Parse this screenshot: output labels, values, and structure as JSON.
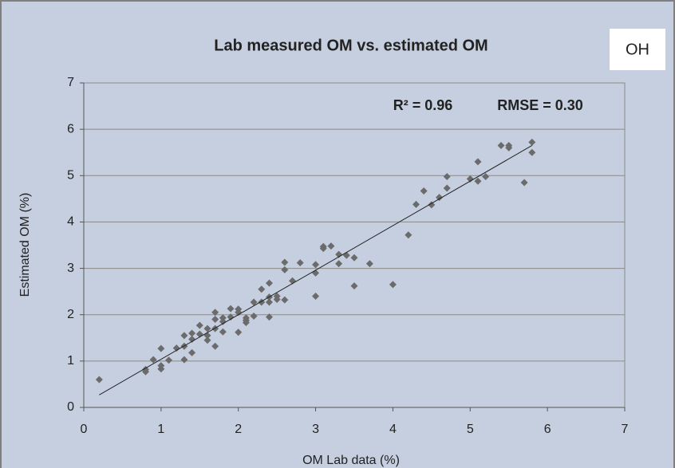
{
  "chart_data": {
    "type": "scatter",
    "title": "Lab measured OM vs. estimated OM",
    "label": "OH",
    "annotations": [
      "R² = 0.96",
      "RMSE = 0.30"
    ],
    "x_label": "OM Lab data (%)",
    "y_label": "Estimated OM (%)",
    "xlim": [
      0,
      7
    ],
    "xticks": [
      0,
      1,
      2,
      3,
      4,
      5,
      6,
      7
    ],
    "ylim": [
      0,
      7
    ],
    "yticks": [
      0,
      1,
      2,
      3,
      4,
      5,
      6,
      7
    ],
    "grid": true,
    "color": "#6b6b6b",
    "x": [
      0.2,
      0.8,
      0.8,
      0.9,
      1.0,
      1.0,
      1.0,
      1.1,
      1.2,
      1.3,
      1.3,
      1.3,
      1.4,
      1.4,
      1.4,
      1.5,
      1.5,
      1.6,
      1.6,
      1.6,
      1.7,
      1.7,
      1.7,
      1.7,
      1.8,
      1.8,
      1.8,
      1.9,
      1.9,
      2.0,
      2.0,
      2.0,
      2.1,
      2.1,
      2.1,
      2.2,
      2.2,
      2.3,
      2.3,
      2.4,
      2.4,
      2.4,
      2.4,
      2.5,
      2.5,
      2.6,
      2.6,
      2.6,
      2.7,
      2.8,
      3.0,
      3.0,
      3.0,
      3.1,
      3.1,
      3.2,
      3.3,
      3.3,
      3.4,
      3.5,
      3.5,
      3.7,
      4.0,
      4.2,
      4.3,
      4.4,
      4.5,
      4.6,
      4.7,
      4.7,
      5.0,
      5.1,
      5.1,
      5.2,
      5.4,
      5.5,
      5.5,
      5.7,
      5.8,
      5.8
    ],
    "values": [
      0.6,
      0.77,
      0.82,
      1.03,
      0.83,
      0.9,
      1.27,
      1.02,
      1.28,
      1.03,
      1.32,
      1.55,
      1.18,
      1.47,
      1.6,
      1.58,
      1.77,
      1.45,
      1.55,
      1.7,
      1.32,
      1.7,
      1.9,
      2.05,
      1.63,
      1.85,
      1.93,
      1.95,
      2.13,
      1.62,
      2.05,
      2.12,
      1.83,
      1.88,
      1.93,
      1.97,
      2.27,
      2.27,
      2.55,
      1.95,
      2.27,
      2.38,
      2.68,
      2.33,
      2.4,
      2.32,
      2.97,
      3.13,
      2.73,
      3.12,
      2.4,
      2.9,
      3.08,
      3.43,
      3.47,
      3.48,
      3.1,
      3.3,
      3.28,
      2.62,
      3.23,
      3.1,
      2.65,
      3.72,
      4.38,
      4.67,
      4.37,
      4.53,
      4.73,
      4.98,
      4.93,
      4.88,
      5.3,
      4.98,
      5.65,
      5.6,
      5.65,
      4.85,
      5.5,
      5.72
    ],
    "trendline": {
      "x": [
        0.2,
        5.8
      ],
      "values": [
        0.27,
        5.65
      ],
      "color": "#222222"
    }
  }
}
